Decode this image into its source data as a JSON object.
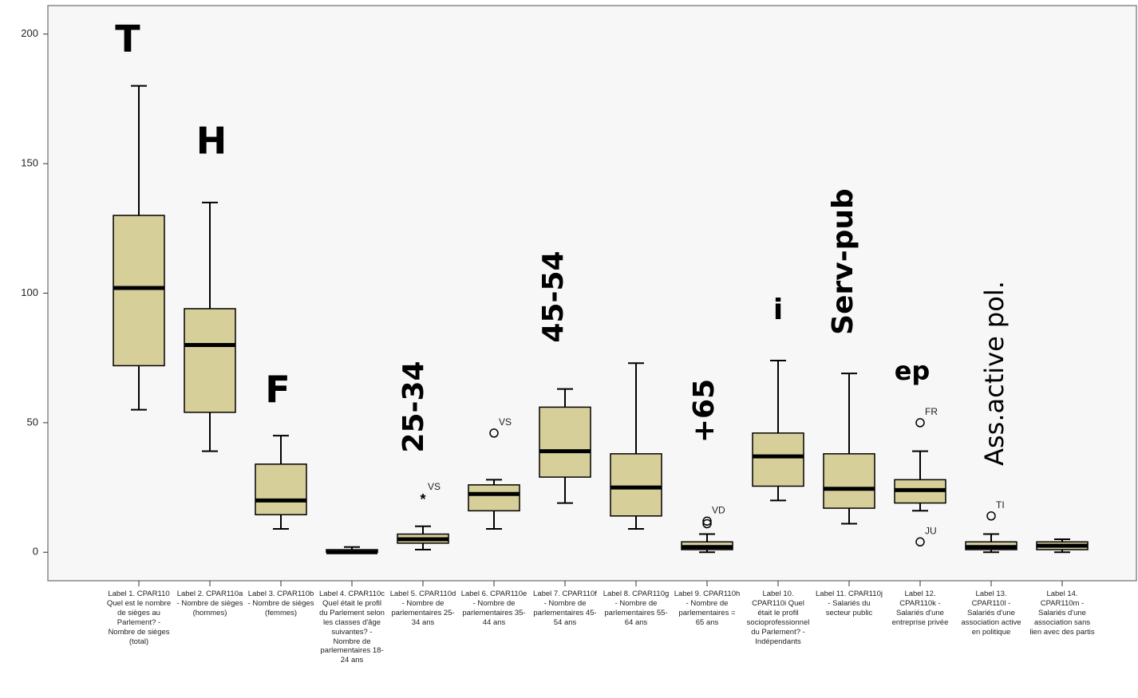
{
  "chart_data": {
    "type": "box",
    "categories": [
      "Label 1. CPAR110 Quel est le nombre de sièges au Parlement? - Nombre de sièges (total)",
      "Label 2. CPAR110a - Nombre de sièges (hommes)",
      "Label 3. CPAR110b - Nombre de sièges (femmes)",
      "Label 4. CPAR110c Quel était le profil du Parlement selon les classes d'âge suivantes? - Nombre de parlementaires 18-24 ans",
      "Label 5. CPAR110d - Nombre de parlementaires 25-34 ans",
      "Label 6. CPAR110e - Nombre de parlementaires 35-44 ans",
      "Label 7. CPAR110f - Nombre de parlementaires 45-54 ans",
      "Label 8. CPAR110g - Nombre de parlementaires 55-64 ans",
      "Label 9. CPAR110h - Nombre de parlementaires = 65 ans",
      "Label 10. CPAR110i Quel était le profil socioprofessionnel du Parlement? - Indépendants",
      "Label 11. CPAR110j - Salariés du secteur public",
      "Label 12. CPAR110k - Salariés d'une entreprise privée",
      "Label 13. CPAR110l - Salariés d'une association active en politique",
      "Label 14. CPAR110m - Salariés d'une association sans lien avec des partis"
    ],
    "boxes": [
      {
        "min": 55,
        "q1": 72,
        "median": 102,
        "q3": 130,
        "max": 180,
        "outliers": []
      },
      {
        "min": 39,
        "q1": 54,
        "median": 80,
        "q3": 94,
        "max": 135,
        "outliers": []
      },
      {
        "min": 9,
        "q1": 14.5,
        "median": 20,
        "q3": 34,
        "max": 45,
        "outliers": []
      },
      {
        "min": 0,
        "q1": 0,
        "median": 0,
        "q3": 1,
        "max": 2,
        "outliers": []
      },
      {
        "min": 1,
        "q1": 3.5,
        "median": 5,
        "q3": 7,
        "max": 10,
        "outliers": [
          {
            "value": 21,
            "label": "VS",
            "symbol": "star"
          }
        ]
      },
      {
        "min": 9,
        "q1": 16,
        "median": 22.5,
        "q3": 26,
        "max": 28,
        "outliers": [
          {
            "value": 46,
            "label": "VS",
            "symbol": "circle"
          }
        ]
      },
      {
        "min": 19,
        "q1": 29,
        "median": 39,
        "q3": 56,
        "max": 63,
        "outliers": []
      },
      {
        "min": 9,
        "q1": 14,
        "median": 25,
        "q3": 38,
        "max": 73,
        "outliers": []
      },
      {
        "min": 0,
        "q1": 1,
        "median": 2,
        "q3": 4,
        "max": 7,
        "outliers": [
          {
            "value": 12,
            "label": "VD",
            "symbol": "circle"
          },
          {
            "value": 11,
            "symbol": "circle"
          }
        ]
      },
      {
        "min": 20,
        "q1": 25.5,
        "median": 37,
        "q3": 46,
        "max": 74,
        "outliers": []
      },
      {
        "min": 11,
        "q1": 17,
        "median": 24.5,
        "q3": 38,
        "max": 69,
        "outliers": []
      },
      {
        "min": 16,
        "q1": 19,
        "median": 24,
        "q3": 28,
        "max": 39,
        "outliers": [
          {
            "value": 50,
            "label": "FR",
            "symbol": "circle"
          },
          {
            "value": 4,
            "label": "JU",
            "symbol": "circle"
          }
        ]
      },
      {
        "min": 0,
        "q1": 1,
        "median": 2,
        "q3": 4,
        "max": 7,
        "outliers": [
          {
            "value": 14,
            "label": "TI",
            "symbol": "circle"
          }
        ]
      },
      {
        "min": 0,
        "q1": 1,
        "median": 2.5,
        "q3": 4,
        "max": 5,
        "outliers": []
      }
    ],
    "color": "#d6cf99",
    "ylim": [
      -11,
      211
    ],
    "yticks": [
      0,
      50,
      100,
      150,
      200
    ],
    "annotations": [
      "T",
      "H",
      "F",
      "25-34",
      "45-54",
      "+65",
      "i",
      "Serv-pub",
      "ep",
      "Ass.active pol."
    ]
  }
}
